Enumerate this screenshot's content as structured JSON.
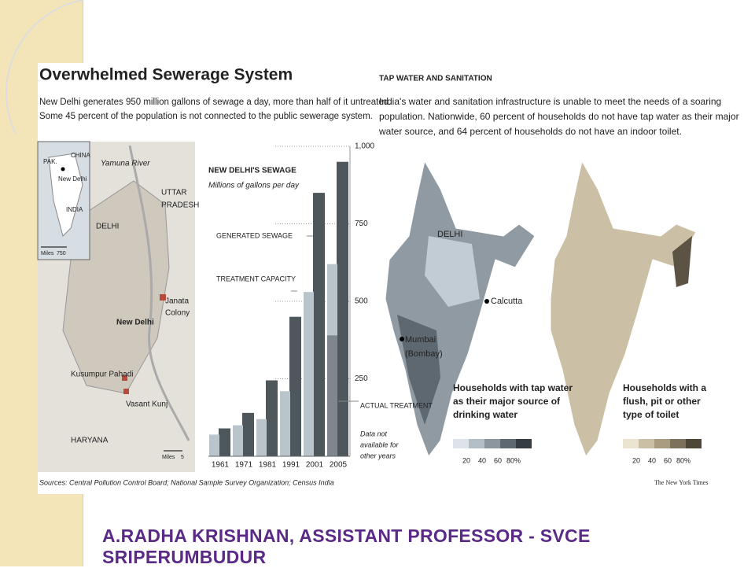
{
  "infographic": {
    "title": "Overwhelmed Sewerage System",
    "intro": [
      "New Delhi generates 950 million gallons of sewage a day, more than half of it untreated.",
      "Some 45 percent of the population is not connected to the public sewerage system."
    ],
    "inset_map": {
      "labels": [
        "PAK.",
        "CHINA",
        "New Delhi",
        "INDIA"
      ],
      "scale_unit": "Miles",
      "scale_value": "750"
    },
    "delhi_map": {
      "labels": [
        "Yamuna River",
        "UTTAR",
        "PRADESH",
        "DELHI",
        "New Delhi",
        "Janata",
        "Colony",
        "Kusumpur Pahadi",
        "Vasant Kunj",
        "HARYANA"
      ],
      "scale_unit": "Miles",
      "scale_value": "5"
    },
    "sources": "Sources: Central Pollution Control Board; National Sample Survey Organization; Census India",
    "right_title": "TAP WATER AND SANITATION",
    "right_text": [
      "India's water and sanitation infrastructure is unable to meet the needs of a soaring",
      "population. Nationwide, 60 percent of households do not have tap water as their major",
      "water source, and 64 percent of households do not have an indoor toilet."
    ],
    "india_map_labels": [
      "DELHI",
      "Calcutta",
      "Mumbai",
      "(Bombay)"
    ],
    "legend1": {
      "title": [
        "Households with tap water",
        "as their major source of",
        "drinking water"
      ],
      "scale": [
        "20",
        "40",
        "60",
        "80%"
      ]
    },
    "legend2": {
      "title": [
        "Households with a",
        "flush, pit or other",
        "type of toilet"
      ],
      "scale": [
        "20",
        "40",
        "60",
        "80%"
      ]
    },
    "credit": "The New York Times"
  },
  "chart_data": {
    "type": "bar",
    "title": "NEW DELHI'S SEWAGE",
    "subtitle": "Millions of gallons per day",
    "categories": [
      "1961",
      "1971",
      "1981",
      "1991",
      "2001",
      "2005"
    ],
    "series": [
      {
        "name": "GENERATED SEWAGE",
        "color": "#4d575c",
        "values": [
          90,
          140,
          245,
          450,
          850,
          950
        ]
      },
      {
        "name": "TREATMENT CAPACITY",
        "color": "#b9c4cb",
        "values": [
          70,
          100,
          120,
          210,
          530,
          620
        ]
      },
      {
        "name": "ACTUAL TREATMENT",
        "color": "#7d878d",
        "values": [
          null,
          null,
          null,
          null,
          null,
          390
        ]
      }
    ],
    "note": [
      "Data not",
      "available for",
      "other years"
    ],
    "ylim": [
      0,
      1000
    ],
    "yticks": [
      250,
      500,
      750,
      {
        "value": 1000,
        "label": "1,000"
      }
    ],
    "grid": true
  },
  "footer": "A.RADHA KRISHNAN, ASSISTANT PROFESSOR - SVCE SRIPERUMBUDUR"
}
